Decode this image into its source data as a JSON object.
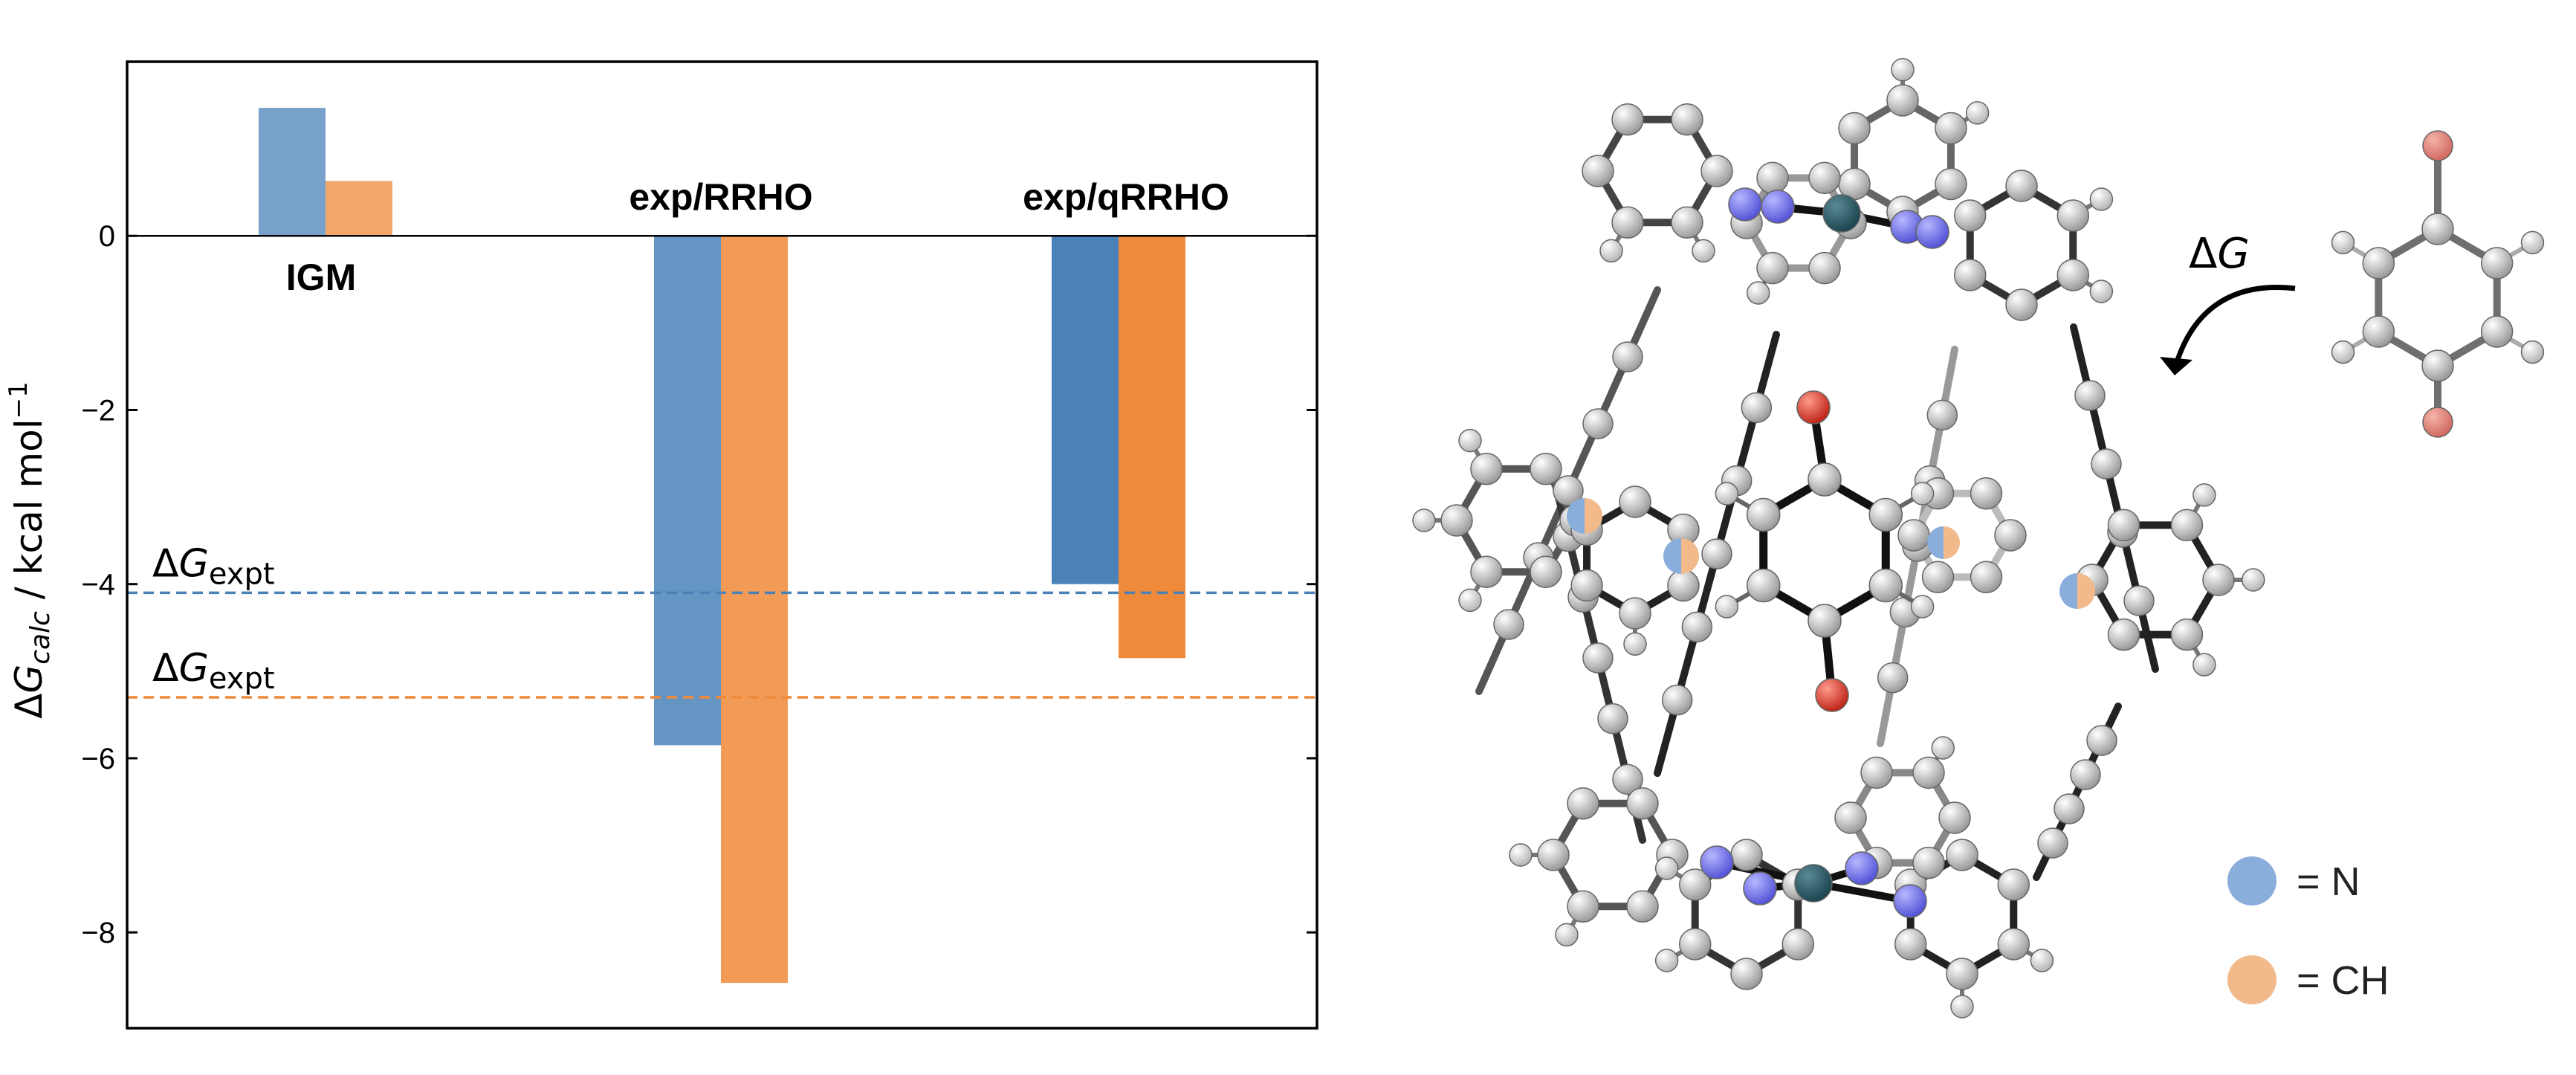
{
  "chart_data": {
    "type": "bar",
    "categories": [
      "IGM",
      "exp/RRHO",
      "exp/qRRHO"
    ],
    "series": [
      {
        "values": [
          1.47,
          -5.85,
          -4.0
        ],
        "color": "#4a82b8"
      },
      {
        "values": [
          0.63,
          -8.58,
          -4.85
        ],
        "color": "#ef8a3a"
      }
    ],
    "ylim": [
      -9.1,
      2.0
    ],
    "yticks": [
      -8,
      -6,
      -4,
      -2,
      0
    ],
    "ytick_labels": [
      "−8",
      "−6",
      "−4",
      "−2",
      "0"
    ],
    "ylabel": {
      "prefix": "Δ",
      "var": "G",
      "sub": "calc",
      "units": " / kcal mol",
      "sup": "−1"
    },
    "reference_lines": [
      {
        "value": -4.1,
        "color": "#4a82b8",
        "symbol": "Δ",
        "var": "G",
        "sub": "expt"
      },
      {
        "value": -5.3,
        "color": "#ef8a3a",
        "symbol": "Δ",
        "var": "G",
        "sub": "expt"
      }
    ],
    "grid": false
  },
  "figure": {
    "arrow_label": {
      "symbol": "Δ",
      "var": "G"
    },
    "legend": [
      {
        "label": "= N",
        "color": "#8aaedc"
      },
      {
        "label": "= CH",
        "color": "#f2b98a"
      }
    ]
  }
}
